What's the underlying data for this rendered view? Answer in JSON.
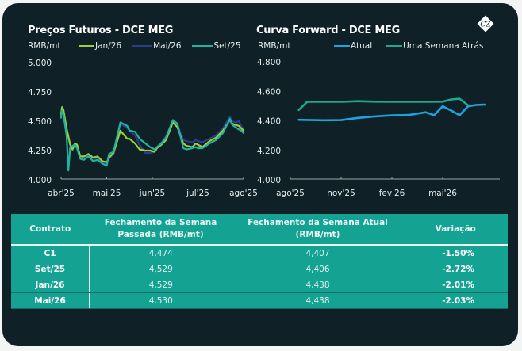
{
  "colors": {
    "background": "#0f2126",
    "jan26": "#9fce3a",
    "mai26": "#2b3b8e",
    "set25": "#1fb3a0",
    "atual": "#1ea3e0",
    "semana_atras": "#1fa88c",
    "table_bg": "#14a293"
  },
  "logo": {
    "text": "CZ",
    "icon": "cz-logo-icon"
  },
  "chart_data": [
    {
      "type": "line",
      "title": "Preços Futuros - DCE MEG",
      "ylabel": "RMB/mt",
      "xlabel": "",
      "ylim": [
        4000,
        5000
      ],
      "yticks": [
        "5.000",
        "4.750",
        "4.500",
        "4.250",
        "4.000"
      ],
      "ytick_values": [
        5000,
        4750,
        4500,
        4250,
        4000
      ],
      "xticks": [
        "abr'25",
        "mai'25",
        "jun'25",
        "jul'25",
        "ago'25"
      ],
      "xlim": [
        0,
        4
      ],
      "legend": [
        "Jan/26",
        "Mai/26",
        "Set/25"
      ],
      "legend_position": "top",
      "grid": false,
      "series": [
        {
          "name": "Jan/26",
          "color_key": "jan26",
          "x": [
            0,
            0.02,
            0.05,
            0.12,
            0.2,
            0.25,
            0.3,
            0.35,
            0.42,
            0.5,
            0.6,
            0.7,
            0.8,
            0.9,
            1.0,
            1.05,
            1.15,
            1.3,
            1.45,
            1.5,
            1.62,
            1.72,
            1.85,
            1.95,
            2.05,
            2.1,
            2.2,
            2.3,
            2.45,
            2.55,
            2.68,
            2.75,
            2.88,
            2.95,
            3.0,
            3.1,
            3.25,
            3.4,
            3.55,
            3.7,
            3.75,
            3.82,
            3.9,
            3.95,
            4.0
          ],
          "values": [
            4560,
            4620,
            4600,
            4440,
            4300,
            4260,
            4310,
            4300,
            4200,
            4200,
            4220,
            4190,
            4200,
            4160,
            4150,
            4190,
            4230,
            4420,
            4350,
            4350,
            4310,
            4260,
            4250,
            4250,
            4240,
            4270,
            4300,
            4340,
            4490,
            4450,
            4310,
            4290,
            4280,
            4310,
            4300,
            4280,
            4330,
            4360,
            4420,
            4510,
            4480,
            4470,
            4460,
            4440,
            4420
          ]
        },
        {
          "name": "Mai/26",
          "color_key": "mai26",
          "x": [
            0,
            0.02,
            0.05,
            0.12,
            0.2,
            0.25,
            0.3,
            0.35,
            0.42,
            0.5,
            0.6,
            0.7,
            0.8,
            0.9,
            1.0,
            1.05,
            1.15,
            1.3,
            1.45,
            1.5,
            1.62,
            1.72,
            1.85,
            1.95,
            2.05,
            2.1,
            2.2,
            2.3,
            2.45,
            2.55,
            2.68,
            2.75,
            2.88,
            2.95,
            3.0,
            3.1,
            3.25,
            3.4,
            3.55,
            3.7,
            3.75,
            3.82,
            3.9,
            3.95,
            4.0
          ],
          "values": [
            4550,
            4580,
            4570,
            4420,
            4290,
            4250,
            4300,
            4290,
            4190,
            4190,
            4210,
            4180,
            4190,
            4150,
            4140,
            4180,
            4220,
            4480,
            4440,
            4420,
            4380,
            4300,
            4230,
            4230,
            4240,
            4270,
            4320,
            4370,
            4500,
            4470,
            4340,
            4330,
            4320,
            4340,
            4330,
            4320,
            4350,
            4380,
            4440,
            4540,
            4500,
            4490,
            4500,
            4460,
            4430
          ]
        },
        {
          "name": "Set/25",
          "color_key": "set25",
          "x": [
            0,
            0.02,
            0.05,
            0.12,
            0.16,
            0.2,
            0.25,
            0.3,
            0.35,
            0.42,
            0.5,
            0.6,
            0.7,
            0.8,
            0.9,
            1.0,
            1.05,
            1.15,
            1.3,
            1.45,
            1.5,
            1.62,
            1.72,
            1.85,
            1.95,
            2.05,
            2.1,
            2.2,
            2.3,
            2.45,
            2.55,
            2.68,
            2.75,
            2.88,
            2.95,
            3.0,
            3.1,
            3.25,
            3.4,
            3.55,
            3.7,
            3.75,
            3.82,
            3.9,
            3.95,
            4.0
          ],
          "values": [
            4530,
            4590,
            4560,
            4380,
            4080,
            4280,
            4290,
            4300,
            4270,
            4180,
            4170,
            4200,
            4160,
            4170,
            4140,
            4120,
            4220,
            4240,
            4490,
            4460,
            4420,
            4410,
            4350,
            4310,
            4280,
            4260,
            4280,
            4310,
            4360,
            4510,
            4480,
            4270,
            4260,
            4270,
            4280,
            4270,
            4270,
            4310,
            4340,
            4400,
            4520,
            4470,
            4450,
            4430,
            4420,
            4400
          ]
        }
      ]
    },
    {
      "type": "line",
      "title": "Curva Forward - DCE MEG",
      "ylabel": "RMB/mt",
      "xlabel": "",
      "ylim": [
        4000,
        4800
      ],
      "yticks": [
        "4.800",
        "4.600",
        "4.400",
        "4.200",
        "4.000"
      ],
      "ytick_values": [
        4800,
        4600,
        4400,
        4200,
        4000
      ],
      "xticks": [
        "ago'25",
        "nov'25",
        "fev'26",
        "mai'26"
      ],
      "xlim": [
        0,
        12
      ],
      "legend": [
        "Atual",
        "Uma Semana Atrás"
      ],
      "legend_position": "top",
      "grid": false,
      "series": [
        {
          "name": "Atual",
          "color_key": "atual",
          "x": [
            0.5,
            1,
            2,
            3,
            4,
            5,
            6,
            7,
            8,
            8.5,
            9,
            9.5,
            10,
            10.5,
            11,
            11.5
          ],
          "values": [
            4407,
            4406,
            4404,
            4405,
            4420,
            4430,
            4437,
            4440,
            4458,
            4438,
            4498,
            4470,
            4438,
            4498,
            4508,
            4510
          ]
        },
        {
          "name": "Uma Semana Atrás",
          "color_key": "semana_atras",
          "x": [
            0.5,
            1,
            2,
            3,
            4,
            5,
            6,
            7,
            8,
            9,
            9.5,
            10,
            10.5
          ],
          "values": [
            4474,
            4529,
            4529,
            4529,
            4533,
            4530,
            4529,
            4529,
            4529,
            4530,
            4545,
            4550,
            4505
          ]
        }
      ]
    }
  ],
  "table": {
    "headers": [
      "Contrato",
      "Fechamento da Semana\nPassada (RMB/mt)",
      "Fechamento da Semana Atual\n(RMB/mt)",
      "Variação"
    ],
    "header_lines": [
      [
        "Contrato"
      ],
      [
        "Fechamento da Semana",
        "Passada (RMB/mt)"
      ],
      [
        "Fechamento da Semana Atual",
        "(RMB/mt)"
      ],
      [
        "Variação"
      ]
    ],
    "rows": [
      {
        "contract": "C1",
        "last_week": "4,474",
        "this_week": "4,407",
        "change": "-1.50%"
      },
      {
        "contract": "Set/25",
        "last_week": "4,529",
        "this_week": "4,406",
        "change": "-2.72%"
      },
      {
        "contract": "Jan/26",
        "last_week": "4,529",
        "this_week": "4,438",
        "change": "-2.01%"
      },
      {
        "contract": "Mai/26",
        "last_week": "4,530",
        "this_week": "4,438",
        "change": "-2.03%"
      }
    ]
  }
}
